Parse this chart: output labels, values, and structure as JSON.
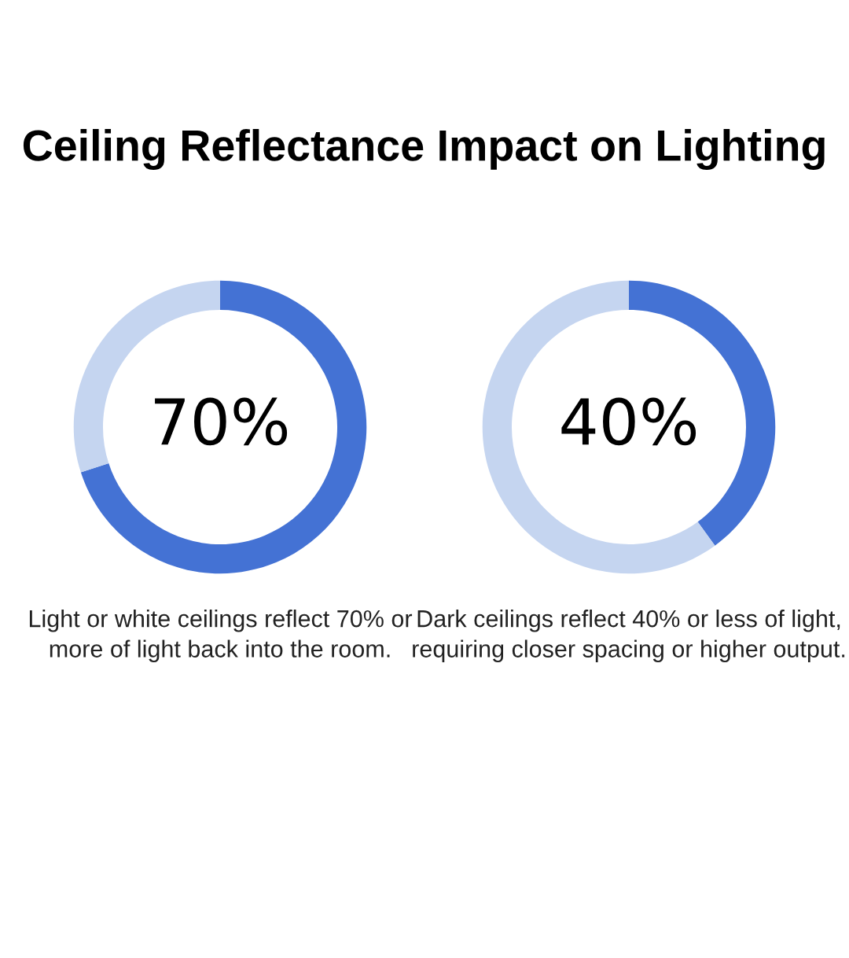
{
  "chart_data": [
    {
      "type": "donut",
      "title": "Ceiling Reflectance Impact on Lighting",
      "categories": [
        null,
        null
      ],
      "values": [
        70,
        30
      ],
      "colors": [
        "#4472d4",
        "#c5d5f0"
      ],
      "annotations": [
        "70%",
        "Light or white ceilings reflect 70% or more of light back into the room."
      ]
    },
    {
      "type": "donut",
      "categories": [
        null,
        null
      ],
      "values": [
        40,
        60
      ],
      "colors": [
        "#4472d4",
        "#c5d5f0"
      ],
      "annotations": [
        "40%",
        "Dark ceilings reflect 40% or less of light, requiring closer spacing or higher output."
      ]
    }
  ]
}
